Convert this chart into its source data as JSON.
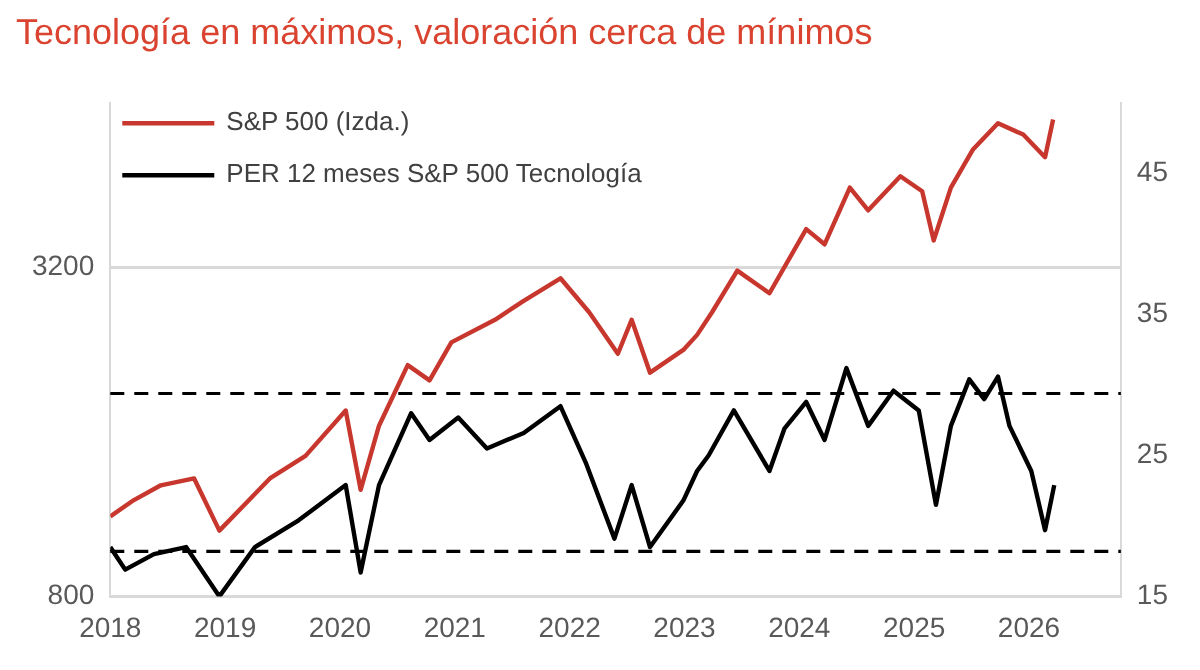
{
  "chart_data": {
    "type": "line",
    "title": "Tecnología en máximos, valoración cerca de mínimos",
    "xlim": [
      2018,
      2026.8
    ],
    "xticks": [
      2018,
      2019,
      2020,
      2021,
      2022,
      2023,
      2024,
      2025,
      2026
    ],
    "ylim": [
      800,
      4400
    ],
    "yticks": [
      800,
      3200
    ],
    "y2lim": [
      15,
      50
    ],
    "y2ticks": [
      15,
      25,
      35,
      45
    ],
    "grid": "y",
    "legend": "top left",
    "marker": "none",
    "line_style": "solid",
    "series": [
      {
        "name": "S&P 500 (Izda.)",
        "color": "#c8372d",
        "x": [
          2018.0,
          2018.19,
          2018.44,
          2018.73,
          2018.95,
          2019.39,
          2019.7,
          2020.05,
          2020.18,
          2020.34,
          2020.59,
          2020.78,
          2020.97,
          2021.35,
          2021.6,
          2021.92,
          2022.17,
          2022.42,
          2022.54,
          2022.7,
          2022.99,
          2023.11,
          2023.24,
          2023.46,
          2023.74,
          2024.06,
          2024.22,
          2024.44,
          2024.6,
          2024.88,
          2025.07,
          2025.17,
          2025.32,
          2025.51,
          2025.73,
          2025.95,
          2026.14,
          2026.21
        ],
        "values": [
          1384,
          1495,
          1611,
          1661,
          1280,
          1661,
          1826,
          2157,
          1578,
          2046,
          2488,
          2377,
          2654,
          2819,
          2957,
          3122,
          2874,
          2571,
          2819,
          2433,
          2599,
          2709,
          2874,
          3178,
          3013,
          3481,
          3370,
          3784,
          3618,
          3867,
          3757,
          3398,
          3784,
          4060,
          4254,
          4171,
          4006,
          4281
        ]
      },
      {
        "name": "PER 12 meses S&P 500 Tecnología",
        "color": "#000000",
        "axis": "y2",
        "x": [
          2018.0,
          2018.13,
          2018.38,
          2018.66,
          2018.95,
          2019.26,
          2019.64,
          2020.05,
          2020.18,
          2020.34,
          2020.62,
          2020.78,
          2021.03,
          2021.28,
          2021.6,
          2021.92,
          2022.14,
          2022.39,
          2022.54,
          2022.7,
          2022.99,
          2023.11,
          2023.21,
          2023.43,
          2023.74,
          2023.87,
          2024.06,
          2024.22,
          2024.41,
          2024.6,
          2024.82,
          2025.04,
          2025.19,
          2025.32,
          2025.48,
          2025.61,
          2025.73,
          2025.83,
          2026.02,
          2026.14,
          2026.22
        ],
        "values": [
          18.5,
          16.9,
          18.0,
          18.5,
          15.0,
          18.5,
          20.4,
          22.9,
          16.7,
          22.9,
          28.0,
          26.1,
          27.7,
          25.5,
          26.6,
          28.5,
          24.5,
          19.1,
          22.9,
          18.5,
          21.8,
          23.9,
          25.0,
          28.2,
          23.9,
          26.9,
          28.8,
          26.1,
          31.2,
          27.1,
          29.6,
          28.2,
          21.5,
          27.1,
          30.4,
          29.0,
          30.6,
          27.1,
          23.9,
          19.7,
          22.9
        ]
      }
    ],
    "ref_lines": [
      {
        "axis": "y2",
        "value": 29.4,
        "color": "#000000",
        "line_style": "dashed"
      },
      {
        "axis": "y2",
        "value": 18.2,
        "color": "#000000",
        "line_style": "dashed"
      }
    ]
  }
}
